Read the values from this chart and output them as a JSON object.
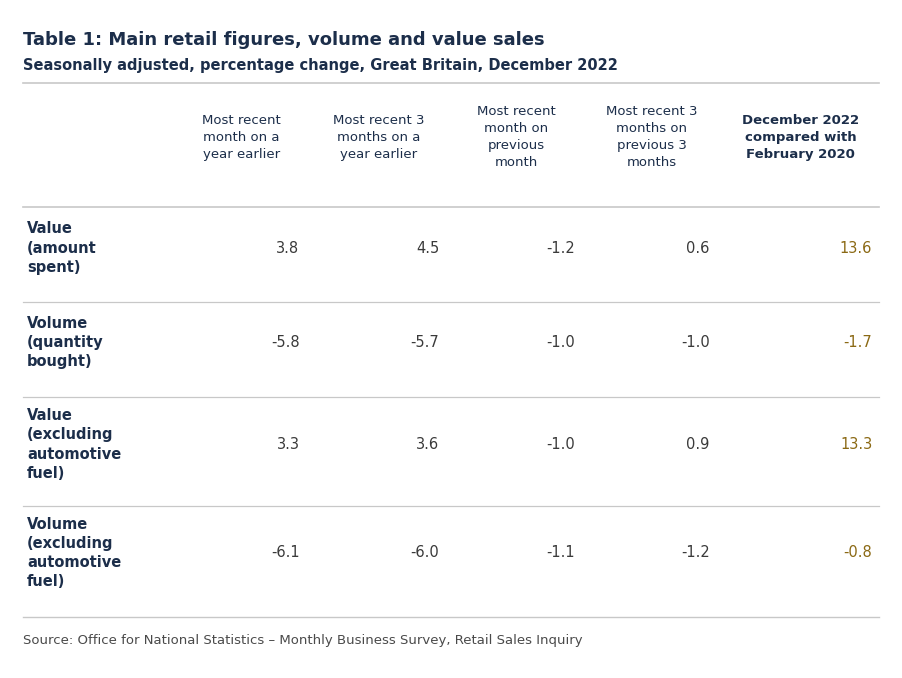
{
  "title": "Table 1: Main retail figures, volume and value sales",
  "subtitle": "Seasonally adjusted, percentage change, Great Britain, December 2022",
  "col_headers": [
    "Most recent\nmonth on a\nyear earlier",
    "Most recent 3\nmonths on a\nyear earlier",
    "Most recent\nmonth on\nprevious\nmonth",
    "Most recent 3\nmonths on\nprevious 3\nmonths",
    "December 2022\ncompared with\nFebruary 2020"
  ],
  "row_labels": [
    "Value\n(amount\nspent)",
    "Volume\n(quantity\nbought)",
    "Value\n(excluding\nautomotive\nfuel)",
    "Volume\n(excluding\nautomotive\nfuel)"
  ],
  "data": [
    [
      "3.8",
      "4.5",
      "-1.2",
      "0.6",
      "13.6"
    ],
    [
      "-5.8",
      "-5.7",
      "-1.0",
      "-1.0",
      "-1.7"
    ],
    [
      "3.3",
      "3.6",
      "-1.0",
      "0.9",
      "13.3"
    ],
    [
      "-6.1",
      "-6.0",
      "-1.1",
      "-1.2",
      "-0.8"
    ]
  ],
  "source": "Source: Office for National Statistics – Monthly Business Survey, Retail Sales Inquiry",
  "bg": "#ffffff",
  "title_color": "#1c2e4a",
  "subtitle_color": "#1c2e4a",
  "header_color": "#1c2e4a",
  "row_label_color": "#1c2e4a",
  "data_color": "#3a3a3a",
  "last_col_color": "#8b6914",
  "source_color": "#4a4a4a",
  "line_color": "#c8c8c8"
}
